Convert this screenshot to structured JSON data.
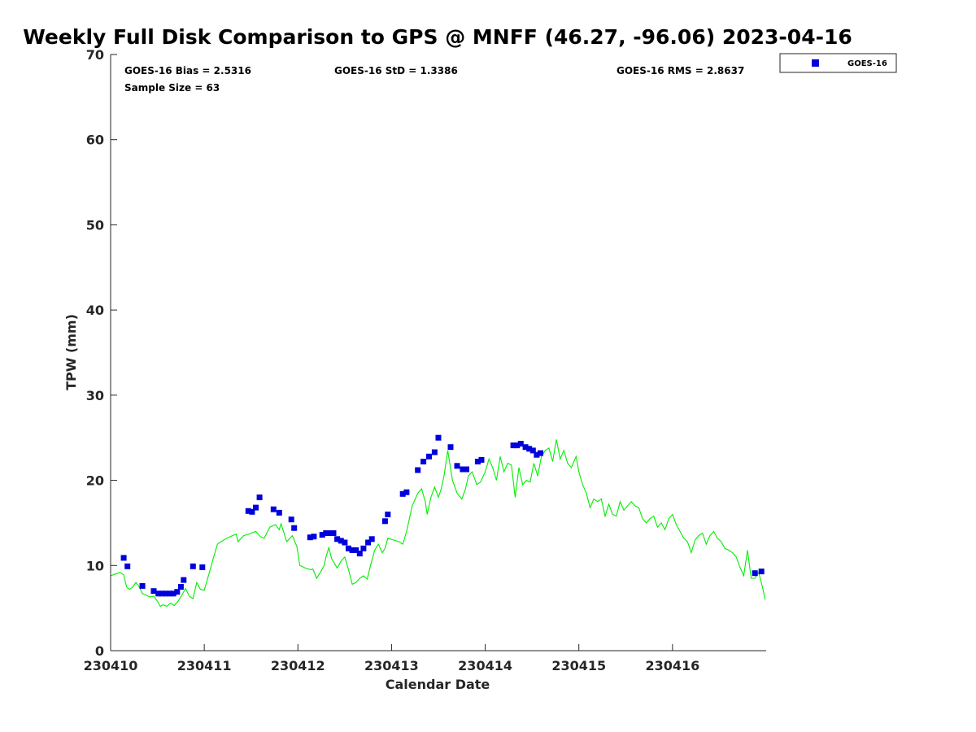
{
  "chart_data": {
    "type": "scatter",
    "title": "Weekly Full Disk Comparison to GPS @ MNFF (46.27, -96.06) 2023-04-16",
    "xlabel": "Calendar Date",
    "ylabel": "TPW (mm)",
    "xlim": [
      0,
      7
    ],
    "ylim": [
      0,
      70
    ],
    "x_ticks": [
      {
        "value": 0,
        "label": "230410"
      },
      {
        "value": 1,
        "label": "230411"
      },
      {
        "value": 2,
        "label": "230412"
      },
      {
        "value": 3,
        "label": "230413"
      },
      {
        "value": 4,
        "label": "230414"
      },
      {
        "value": 5,
        "label": "230415"
      },
      {
        "value": 6,
        "label": "230416"
      }
    ],
    "y_ticks": [
      {
        "value": 0,
        "label": "0"
      },
      {
        "value": 10,
        "label": "10"
      },
      {
        "value": 20,
        "label": "20"
      },
      {
        "value": 30,
        "label": "30"
      },
      {
        "value": 40,
        "label": "40"
      },
      {
        "value": 50,
        "label": "50"
      },
      {
        "value": 60,
        "label": "60"
      },
      {
        "value": 70,
        "label": "70"
      }
    ],
    "stats": {
      "bias": "GOES-16 Bias = 2.5316",
      "std": "GOES-16 StD = 1.3386",
      "rms": "GOES-16 RMS = 2.8637",
      "sample": "Sample Size = 63"
    },
    "legend": {
      "label": "GOES-16",
      "position": "top-right-outside"
    },
    "series": [
      {
        "name": "GOES-16",
        "kind": "scatter",
        "color": "#0000dd",
        "x": [
          0.14,
          0.18,
          0.34,
          0.46,
          0.51,
          0.55,
          0.59,
          0.63,
          0.67,
          0.71,
          0.75,
          0.78,
          0.88,
          0.98,
          1.47,
          1.51,
          1.55,
          1.59,
          1.74,
          1.8,
          1.93,
          1.96,
          2.13,
          2.17,
          2.26,
          2.3,
          2.34,
          2.38,
          2.42,
          2.46,
          2.5,
          2.54,
          2.58,
          2.62,
          2.66,
          2.7,
          2.75,
          2.79,
          2.93,
          2.96,
          3.12,
          3.16,
          3.28,
          3.34,
          3.4,
          3.46,
          3.5,
          3.63,
          3.7,
          3.76,
          3.8,
          3.92,
          3.96,
          4.3,
          4.34,
          4.38,
          4.43,
          4.47,
          4.51,
          4.55,
          4.59,
          6.88,
          6.95
        ],
        "y": [
          10.9,
          9.9,
          7.6,
          7.0,
          6.7,
          6.7,
          6.7,
          6.7,
          6.7,
          6.9,
          7.5,
          8.3,
          9.9,
          9.8,
          16.4,
          16.3,
          16.8,
          18.0,
          16.6,
          16.2,
          15.4,
          14.4,
          13.3,
          13.4,
          13.6,
          13.8,
          13.8,
          13.8,
          13.1,
          12.9,
          12.7,
          12.0,
          11.8,
          11.8,
          11.4,
          12.0,
          12.7,
          13.1,
          15.2,
          16.0,
          18.4,
          18.6,
          21.2,
          22.2,
          22.8,
          23.3,
          25.0,
          23.9,
          21.7,
          21.3,
          21.3,
          22.2,
          22.4,
          24.1,
          24.1,
          24.3,
          23.9,
          23.7,
          23.5,
          23.0,
          23.2,
          9.1,
          9.3
        ]
      },
      {
        "name": "GPS",
        "kind": "line",
        "color": "#00ee00",
        "x": [
          0.0,
          0.05,
          0.1,
          0.14,
          0.17,
          0.2,
          0.23,
          0.27,
          0.3,
          0.34,
          0.38,
          0.42,
          0.46,
          0.5,
          0.53,
          0.56,
          0.6,
          0.64,
          0.68,
          0.72,
          0.76,
          0.8,
          0.84,
          0.88,
          0.92,
          0.96,
          1.0,
          1.05,
          1.1,
          1.14,
          1.18,
          1.24,
          1.3,
          1.34,
          1.36,
          1.42,
          1.48,
          1.55,
          1.6,
          1.64,
          1.7,
          1.76,
          1.8,
          1.82,
          1.88,
          1.94,
          1.99,
          2.02,
          2.08,
          2.14,
          2.16,
          2.2,
          2.24,
          2.28,
          2.3,
          2.33,
          2.36,
          2.42,
          2.46,
          2.5,
          2.54,
          2.58,
          2.62,
          2.66,
          2.7,
          2.74,
          2.78,
          2.82,
          2.86,
          2.9,
          2.93,
          2.96,
          3.02,
          3.08,
          3.12,
          3.16,
          3.22,
          3.28,
          3.32,
          3.36,
          3.38,
          3.42,
          3.46,
          3.5,
          3.53,
          3.56,
          3.6,
          3.65,
          3.7,
          3.75,
          3.79,
          3.82,
          3.86,
          3.91,
          3.95,
          4.0,
          4.04,
          4.08,
          4.12,
          4.16,
          4.2,
          4.24,
          4.28,
          4.32,
          4.36,
          4.4,
          4.44,
          4.48,
          4.52,
          4.56,
          4.6,
          4.64,
          4.68,
          4.72,
          4.76,
          4.8,
          4.84,
          4.88,
          4.92,
          4.97,
          5.0,
          5.04,
          5.08,
          5.12,
          5.16,
          5.2,
          5.24,
          5.28,
          5.32,
          5.36,
          5.4,
          5.44,
          5.48,
          5.52,
          5.56,
          5.6,
          5.64,
          5.68,
          5.72,
          5.76,
          5.8,
          5.84,
          5.88,
          5.92,
          5.96,
          6.0,
          6.04,
          6.08,
          6.12,
          6.16,
          6.2,
          6.24,
          6.28,
          6.32,
          6.36,
          6.4,
          6.44,
          6.48,
          6.52,
          6.56,
          6.6,
          6.64,
          6.68,
          6.72,
          6.76,
          6.8,
          6.84,
          6.88,
          6.92,
          6.96,
          6.99
        ],
        "y": [
          8.8,
          9.0,
          9.2,
          8.9,
          7.5,
          7.2,
          7.4,
          8.0,
          7.6,
          6.7,
          6.5,
          6.3,
          6.4,
          5.8,
          5.2,
          5.4,
          5.2,
          5.6,
          5.3,
          5.8,
          6.5,
          7.3,
          6.4,
          6.1,
          8.0,
          7.2,
          7.1,
          9.0,
          11.0,
          12.5,
          12.8,
          13.2,
          13.5,
          13.7,
          12.8,
          13.5,
          13.7,
          14.0,
          13.4,
          13.2,
          14.5,
          14.8,
          14.2,
          14.9,
          12.8,
          13.5,
          12.2,
          10.0,
          9.7,
          9.5,
          9.6,
          8.5,
          9.2,
          10.0,
          11.0,
          12.1,
          10.8,
          9.7,
          10.5,
          11.0,
          9.5,
          7.8,
          8.0,
          8.5,
          8.8,
          8.4,
          10.2,
          11.8,
          12.5,
          11.5,
          12.0,
          13.2,
          13.0,
          12.8,
          12.5,
          14.0,
          17.0,
          18.5,
          19.0,
          17.5,
          16.0,
          18.0,
          19.2,
          18.0,
          19.0,
          20.5,
          23.5,
          20.0,
          18.5,
          17.8,
          19.0,
          20.5,
          21.0,
          19.5,
          19.8,
          21.0,
          22.5,
          21.5,
          20.0,
          22.8,
          21.0,
          22.0,
          21.8,
          18.0,
          21.5,
          19.5,
          20.0,
          19.8,
          22.0,
          20.5,
          22.8,
          23.5,
          23.8,
          22.2,
          24.8,
          22.5,
          23.5,
          22.0,
          21.5,
          22.8,
          21.0,
          19.5,
          18.5,
          16.8,
          17.8,
          17.5,
          17.8,
          15.8,
          17.2,
          16.0,
          15.8,
          17.5,
          16.5,
          17.0,
          17.5,
          17.0,
          16.8,
          15.5,
          15.0,
          15.5,
          15.8,
          14.5,
          15.0,
          14.2,
          15.5,
          16.0,
          14.8,
          14.0,
          13.2,
          12.8,
          11.5,
          13.0,
          13.5,
          13.8,
          12.5,
          13.5,
          14.0,
          13.2,
          12.8,
          12.0,
          11.8,
          11.5,
          11.0,
          9.8,
          8.8,
          11.8,
          8.5,
          8.5,
          9.2,
          7.5,
          6.0
        ]
      }
    ]
  }
}
